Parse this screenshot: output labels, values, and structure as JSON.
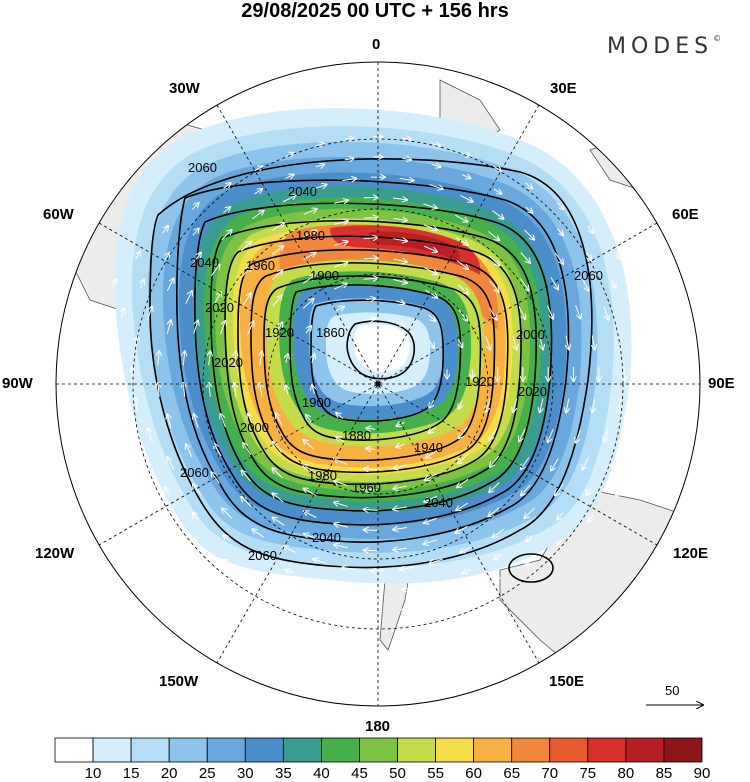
{
  "title": "29/08/2025  00 UTC  + 156 hrs",
  "brand": "MODES",
  "brand_mark": "©",
  "longitude_labels": {
    "n0": "0",
    "n30e": "30E",
    "n60e": "60E",
    "n90e": "90E",
    "n120e": "120E",
    "n150e": "150E",
    "n180": "180",
    "n150w": "150W",
    "n120w": "120W",
    "n90w": "90W",
    "n60w": "60W",
    "n30w": "30W"
  },
  "contour_labels": [
    "2060",
    "2040",
    "2020",
    "2000",
    "1980",
    "1960",
    "1940",
    "1920",
    "1900",
    "1880",
    "1860"
  ],
  "reference_vector": "50",
  "colorbar": {
    "values": [
      "10",
      "15",
      "20",
      "25",
      "30",
      "35",
      "40",
      "45",
      "50",
      "55",
      "60",
      "65",
      "70",
      "75",
      "80",
      "85",
      "90"
    ],
    "colors": [
      "#ffffff",
      "#d4eefb",
      "#b3def6",
      "#8cc4ec",
      "#68a8dc",
      "#4a8fcb",
      "#3a9c8e",
      "#46b04a",
      "#7dc242",
      "#c5dc4a",
      "#f5dd4a",
      "#f7b143",
      "#f0873a",
      "#e85a30",
      "#d8302a",
      "#b81f25",
      "#8c1519"
    ]
  },
  "colors": {
    "land": "#ececec",
    "coast": "#555555",
    "contour": "#000000",
    "arrows": "#ffffff"
  }
}
